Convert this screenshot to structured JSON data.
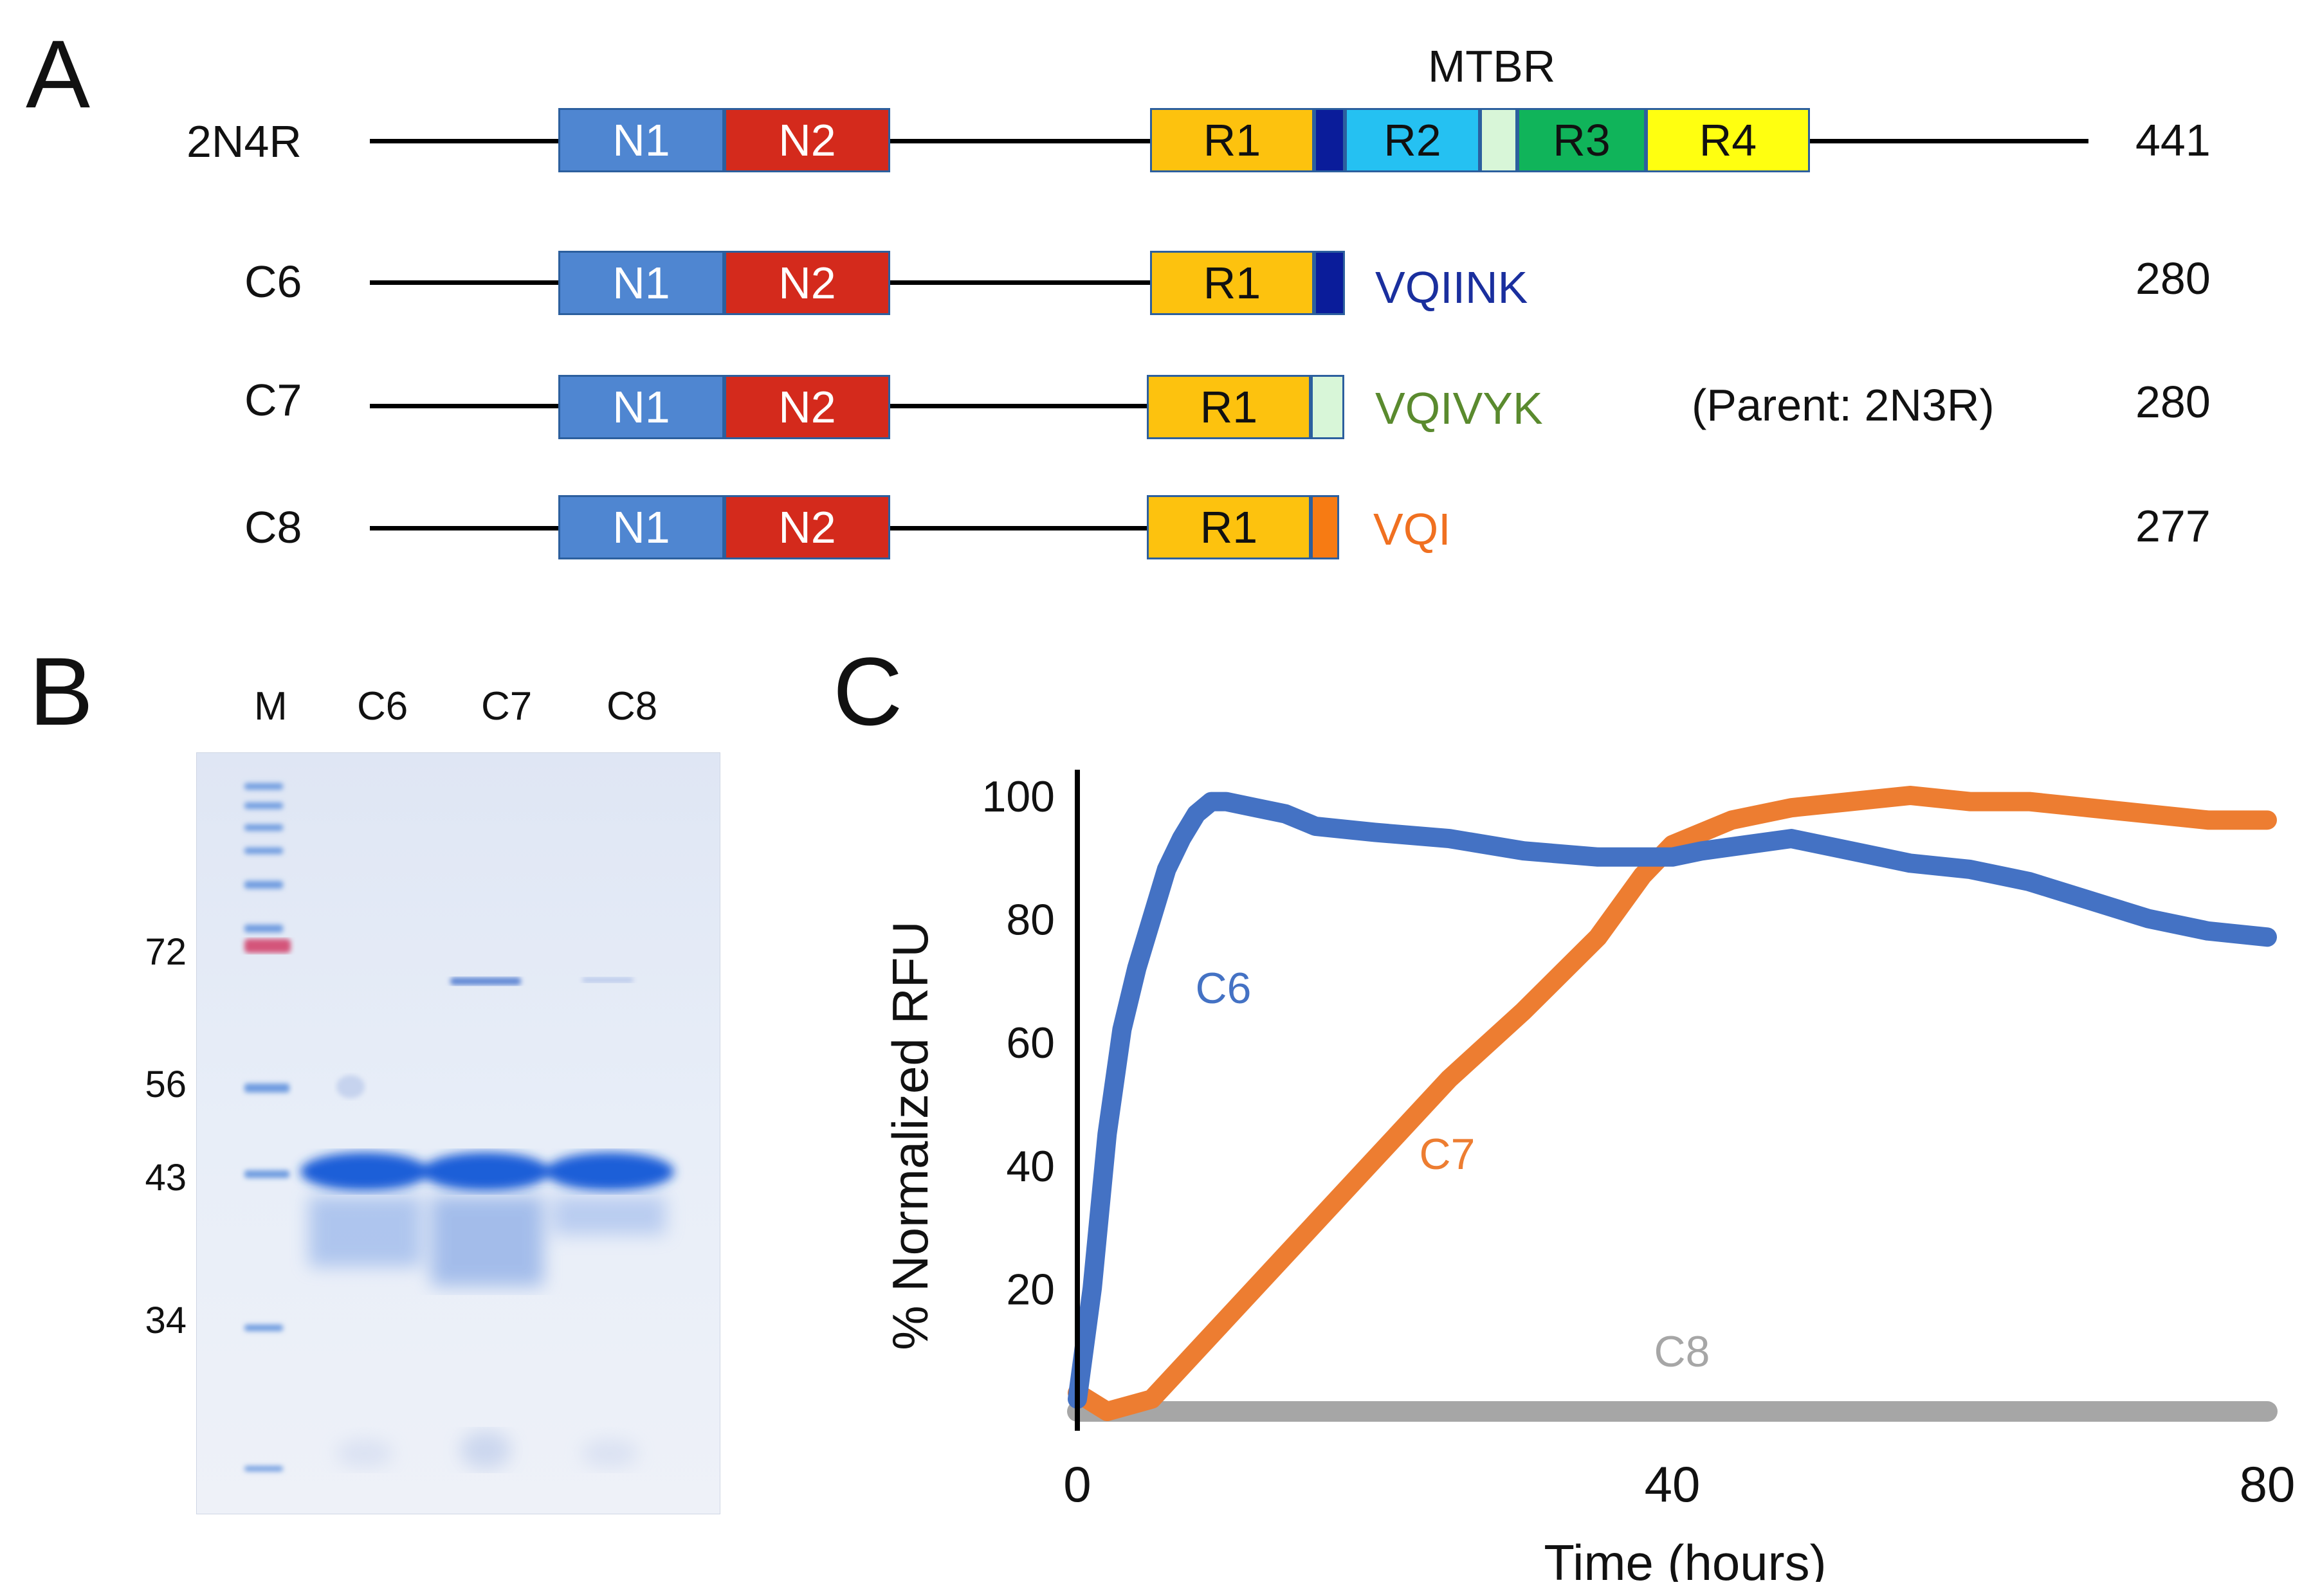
{
  "panels": {
    "a": "A",
    "b": "B",
    "c": "C"
  },
  "panel_a": {
    "mtbr_label": "MTBR",
    "constructs": [
      {
        "name": "2N4R",
        "length": "441"
      },
      {
        "name": "C6",
        "length": "280",
        "cap_text": "VQIINK"
      },
      {
        "name": "C7",
        "length": "280",
        "cap_text": "VQIVYK",
        "note": "(Parent: 2N3R)"
      },
      {
        "name": "C8",
        "length": "277",
        "cap_text": "VQI"
      }
    ],
    "domain_labels": {
      "n1": "N1",
      "n2": "N2",
      "r1": "R1",
      "r2": "R2",
      "r3": "R3",
      "r4": "R4"
    },
    "colors": {
      "N1": "#4f86d1",
      "N2": "#d42a1c",
      "R1": "#fdc20e",
      "VQIINK": "#0a1c9a",
      "R2": "#25c1f2",
      "VQIVYK": "#d8f6d8",
      "R3": "#10b45a",
      "R4": "#ffff10",
      "VQI": "#f77b13",
      "text_vqiink": "#1a2f9e",
      "text_vqivyk": "#5a8a2e",
      "text_vqi": "#f07020"
    }
  },
  "panel_b": {
    "lanes": [
      "M",
      "C6",
      "C7",
      "C8"
    ],
    "markers_kda": [
      "72",
      "56",
      "43",
      "34"
    ]
  },
  "panel_c": {
    "chart_data": {
      "type": "line",
      "xlabel": "Time (hours)",
      "ylabel": "% Normalized RFU",
      "xlim": [
        0,
        80
      ],
      "ylim": [
        0,
        100
      ],
      "xticks": [
        "0",
        "40",
        "80"
      ],
      "yticks": [
        "20",
        "40",
        "60",
        "80",
        "100"
      ],
      "series": [
        {
          "name": "C6",
          "color": "#4472c4",
          "x": [
            0,
            1,
            2,
            3,
            4,
            5,
            6,
            7,
            8,
            9,
            10,
            12,
            14,
            16,
            20,
            25,
            30,
            35,
            38,
            40,
            42,
            45,
            48,
            52,
            56,
            60,
            64,
            68,
            72,
            76,
            80
          ],
          "y": [
            2,
            20,
            45,
            62,
            72,
            80,
            88,
            93,
            97,
            99,
            99,
            98,
            97,
            95,
            94,
            93,
            91,
            90,
            90,
            90,
            91,
            92,
            93,
            91,
            89,
            88,
            86,
            83,
            80,
            78,
            77
          ]
        },
        {
          "name": "C7",
          "color": "#ed7d31",
          "x": [
            0,
            2,
            5,
            10,
            15,
            20,
            25,
            30,
            35,
            38,
            40,
            44,
            48,
            52,
            56,
            60,
            64,
            68,
            72,
            76,
            80
          ],
          "y": [
            3,
            0,
            2,
            15,
            28,
            41,
            54,
            65,
            77,
            87,
            92,
            96,
            98,
            99,
            100,
            99,
            99,
            98,
            97,
            96,
            96
          ]
        },
        {
          "name": "C8",
          "color": "#a6a6a6",
          "x": [
            0,
            20,
            40,
            60,
            80
          ],
          "y": [
            0,
            0,
            0,
            0,
            0
          ]
        }
      ]
    }
  }
}
